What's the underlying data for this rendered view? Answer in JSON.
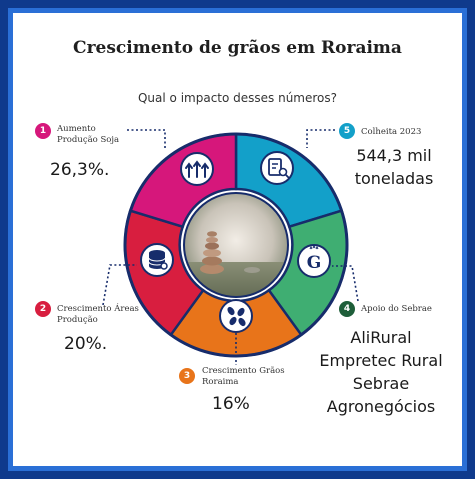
{
  "title": "Crescimento de grãos em Roraima",
  "subtitle": "Qual o impacto desses números?",
  "items": [
    {
      "num": "1",
      "label_l1": "Aumento",
      "label_l2": "Produção Soja",
      "value": "26,3%.",
      "color": "#d6177b",
      "icon": "arrows-up-icon"
    },
    {
      "num": "2",
      "label_l1": "Crescimento Áreas",
      "label_l2": "Produção",
      "value": "20%.",
      "color": "#d81e3f",
      "icon": "database-icon"
    },
    {
      "num": "3",
      "label_l1": "Crescimento Grãos",
      "label_l2": "Roraima",
      "value": "16%",
      "color": "#e8741a",
      "icon": "seeds-icon"
    },
    {
      "num": "4",
      "label_l1": "Apoio do Sebrae",
      "value_lines": [
        "AliRural",
        "Empretec Rural",
        "Sebrae",
        "Agronegócios"
      ],
      "color": "#1e5e3a",
      "segment_color": "#3fae72",
      "icon": "google-g-icon"
    },
    {
      "num": "5",
      "label_l1": "Colheita 2023",
      "value_lines": [
        "544,3 mil",
        "toneladas"
      ],
      "color": "#13a0c9",
      "icon": "document-search-icon"
    }
  ],
  "colors": {
    "navy": "#172c6b",
    "frame": "#0f3a8c",
    "frame_inner": "#2a6fd6"
  }
}
